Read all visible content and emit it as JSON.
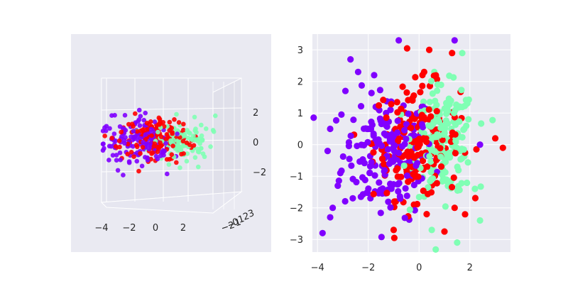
{
  "chart_data": [
    {
      "type": "scatter",
      "projection": "3d",
      "background": "#eaeaf2",
      "grid": true,
      "x_ticks": [
        "−4",
        "−2",
        "0",
        "2"
      ],
      "y_ticks_overlap": [
        "−2",
        "−1",
        "0",
        "1",
        "2",
        "3"
      ],
      "z_ticks": [
        "2",
        "0",
        "−2"
      ],
      "xlim": [
        -4,
        3
      ],
      "ylim": [
        -3,
        3
      ],
      "zlim": [
        -3,
        3
      ],
      "series": [
        {
          "color": "#8000ff",
          "center": [
            -1.3,
            -0.2,
            0.1
          ],
          "spread": 0.9,
          "count": 140
        },
        {
          "color": "#ff0000",
          "center": [
            -0.2,
            0.2,
            0.3
          ],
          "spread": 0.8,
          "count": 150
        },
        {
          "color": "#80ffb4",
          "center": [
            1.1,
            0.0,
            0.0
          ],
          "spread": 0.7,
          "count": 120
        }
      ]
    },
    {
      "type": "scatter",
      "background": "#eaeaf2",
      "grid": true,
      "xlim": [
        -4.2,
        3.6
      ],
      "ylim": [
        -3.4,
        3.5
      ],
      "x_ticks": [
        -4,
        -2,
        0,
        2
      ],
      "y_ticks": [
        -3,
        -2,
        -1,
        0,
        1,
        2,
        3
      ],
      "x_tick_labels": [
        "−4",
        "−2",
        "0",
        "2"
      ],
      "y_tick_labels": [
        "−3",
        "−2",
        "−1",
        "0",
        "1",
        "2",
        "3"
      ],
      "series": [
        {
          "color": "#8000ff",
          "center": [
            -1.2,
            -0.3
          ],
          "spread": [
            0.9,
            1.0
          ],
          "count": 180,
          "outliers": [
            [
              -3.8,
              -2.8
            ],
            [
              -3.5,
              -2.3
            ],
            [
              -3.2,
              -1.3
            ],
            [
              -3.4,
              -2.0
            ],
            [
              -2.9,
              1.7
            ],
            [
              -2.7,
              2.7
            ],
            [
              -0.8,
              3.3
            ],
            [
              -3.1,
              -0.9
            ],
            [
              -3.5,
              0.5
            ],
            [
              -3.6,
              -0.2
            ],
            [
              1.4,
              3.3
            ],
            [
              2.4,
              0.0
            ],
            [
              -2.4,
              2.3
            ]
          ]
        },
        {
          "color": "#ff0000",
          "center": [
            -0.1,
            0.1
          ],
          "spread": [
            0.85,
            0.9
          ],
          "count": 190,
          "outliers": [
            [
              3.3,
              -0.1
            ],
            [
              3.0,
              0.2
            ],
            [
              0.4,
              3.0
            ],
            [
              1.3,
              2.9
            ],
            [
              1.0,
              -2.75
            ],
            [
              -0.2,
              -1.9
            ],
            [
              0.3,
              -2.2
            ],
            [
              1.4,
              -2.0
            ],
            [
              -1.0,
              -2.7
            ],
            [
              0.2,
              2.3
            ]
          ]
        },
        {
          "color": "#80ffb4",
          "center": [
            1.0,
            0.1
          ],
          "spread": [
            0.6,
            0.85
          ],
          "count": 170,
          "outliers": [
            [
              1.7,
              2.9
            ],
            [
              1.5,
              -3.1
            ],
            [
              2.4,
              -2.4
            ],
            [
              0.5,
              -2.7
            ],
            [
              2.2,
              -1.4
            ],
            [
              0.6,
              2.3
            ]
          ]
        }
      ]
    }
  ]
}
